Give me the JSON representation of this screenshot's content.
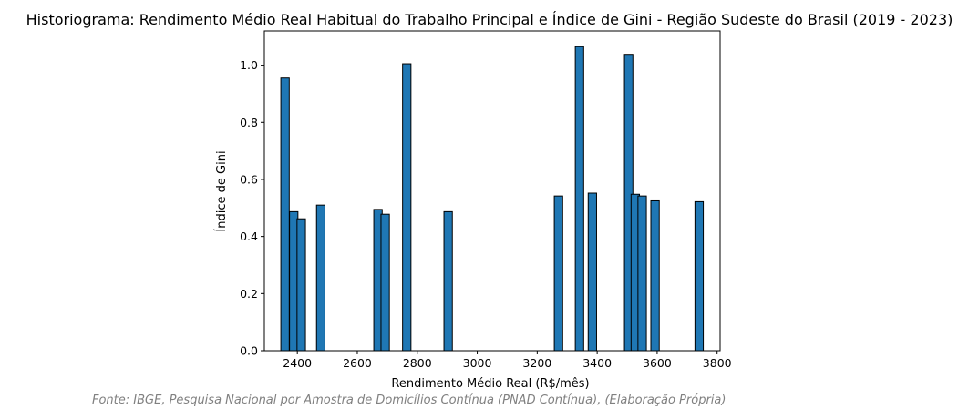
{
  "chart_data": {
    "type": "bar",
    "title": "Historiograma: Rendimento Médio Real Habitual do Trabalho Principal e Índice de Gini - Região Sudeste do Brasil (2019 - 2023)",
    "xlabel": "Rendimento Médio Real (R$/mês)",
    "ylabel": "Índice de Gini",
    "xlim": [
      2290,
      3810
    ],
    "ylim": [
      0,
      1.12
    ],
    "xticks": [
      2400,
      2600,
      2800,
      3000,
      3200,
      3400,
      3600,
      3800
    ],
    "yticks": [
      0.0,
      0.2,
      0.4,
      0.6,
      0.8,
      1.0
    ],
    "bar_width": 28,
    "bar_color": "#1f77b4",
    "edge_color": "#000000",
    "grid": false,
    "points": [
      {
        "x": 2359,
        "y": 0.955
      },
      {
        "x": 2388,
        "y": 0.487
      },
      {
        "x": 2413,
        "y": 0.462
      },
      {
        "x": 2478,
        "y": 0.51
      },
      {
        "x": 2669,
        "y": 0.495
      },
      {
        "x": 2693,
        "y": 0.478
      },
      {
        "x": 2765,
        "y": 1.005
      },
      {
        "x": 2903,
        "y": 0.487
      },
      {
        "x": 3271,
        "y": 0.542
      },
      {
        "x": 3341,
        "y": 1.065
      },
      {
        "x": 3384,
        "y": 0.552
      },
      {
        "x": 3505,
        "y": 1.038
      },
      {
        "x": 3527,
        "y": 0.548
      },
      {
        "x": 3550,
        "y": 0.542
      },
      {
        "x": 3593,
        "y": 0.525
      },
      {
        "x": 3740,
        "y": 0.522
      }
    ]
  },
  "source_note": "Fonte: IBGE, Pesquisa Nacional por Amostra de Domicílios Contínua (PNAD Contínua), (Elaboração Própria)"
}
